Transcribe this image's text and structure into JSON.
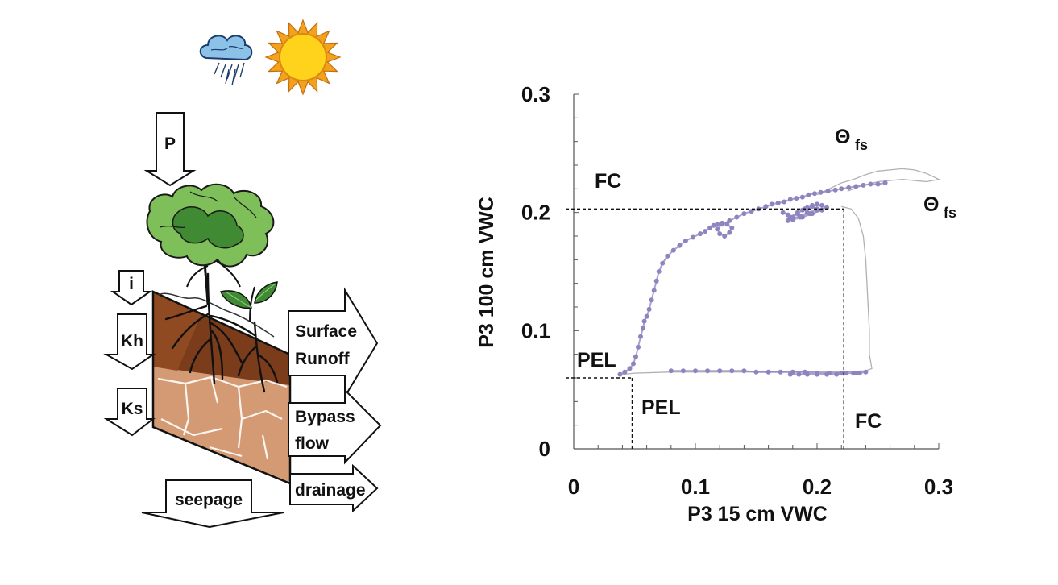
{
  "diagram": {
    "weather_icons": [
      "rain-cloud-icon",
      "sun-icon"
    ],
    "arrows": {
      "precipitation": "P",
      "infiltration": "i",
      "horizontal_conductivity": "Kh",
      "saturated_conductivity": "Ks",
      "surface_runoff_line1": "Surface",
      "surface_runoff_line2": "Runoff",
      "bypass_flow_line1": "Bypass",
      "bypass_flow_line2": "flow",
      "drainage": "drainage",
      "seepage": "seepage"
    }
  },
  "chart_data": {
    "type": "scatter",
    "title": "",
    "xlabel": "P3 15 cm VWC",
    "ylabel": "P3 100 cm VWC",
    "xlim": [
      0,
      0.3
    ],
    "ylim": [
      0,
      0.3
    ],
    "xticks": [
      "0",
      "0.1",
      "0.2",
      "0.3"
    ],
    "yticks": [
      "0",
      "0.1",
      "0.2",
      "0.3"
    ],
    "grid": false,
    "colors": {
      "points": "#8e84c0",
      "trace": "#b0b0b8",
      "reference_lines": "#111111"
    },
    "reference_lines": [
      {
        "label": "FC",
        "x": 0.222,
        "y": 0.203
      },
      {
        "label": "PEL",
        "x": 0.048,
        "y": 0.06
      }
    ],
    "annotations": {
      "fc_y_label": "FC",
      "fc_x_label": "FC",
      "pel_y_label": "PEL",
      "pel_x_label": "PEL",
      "theta_symbol": "Θ",
      "theta_subscript": "fs"
    },
    "series": [
      {
        "x": [
          0.038,
          0.042,
          0.046,
          0.049,
          0.051,
          0.053,
          0.055,
          0.057,
          0.058,
          0.06,
          0.062,
          0.064,
          0.066,
          0.068,
          0.07,
          0.073,
          0.077,
          0.082,
          0.087,
          0.092,
          0.098,
          0.104,
          0.108,
          0.112,
          0.115,
          0.118,
          0.122,
          0.126,
          0.13,
          0.128,
          0.124,
          0.12,
          0.118,
          0.122,
          0.128,
          0.134,
          0.14,
          0.146,
          0.152,
          0.158,
          0.163,
          0.168,
          0.173,
          0.178,
          0.183,
          0.188,
          0.193,
          0.198,
          0.203,
          0.209,
          0.215,
          0.22,
          0.226,
          0.232,
          0.238,
          0.244,
          0.25,
          0.256
        ],
        "y": [
          0.063,
          0.065,
          0.068,
          0.072,
          0.078,
          0.086,
          0.095,
          0.102,
          0.108,
          0.112,
          0.118,
          0.126,
          0.134,
          0.142,
          0.15,
          0.157,
          0.163,
          0.168,
          0.172,
          0.176,
          0.179,
          0.182,
          0.184,
          0.187,
          0.189,
          0.19,
          0.191,
          0.19,
          0.187,
          0.183,
          0.18,
          0.182,
          0.186,
          0.19,
          0.193,
          0.196,
          0.199,
          0.201,
          0.203,
          0.205,
          0.207,
          0.208,
          0.209,
          0.211,
          0.212,
          0.213,
          0.215,
          0.216,
          0.217,
          0.218,
          0.219,
          0.22,
          0.221,
          0.222,
          0.223,
          0.224,
          0.224,
          0.225
        ]
      },
      {
        "x": [
          0.172,
          0.176,
          0.18,
          0.184,
          0.188,
          0.192,
          0.196,
          0.2,
          0.204,
          0.208,
          0.2,
          0.192,
          0.186,
          0.18,
          0.176,
          0.178,
          0.184,
          0.19,
          0.196,
          0.2,
          0.194,
          0.186,
          0.18,
          0.188,
          0.196,
          0.204
        ],
        "y": [
          0.2,
          0.198,
          0.196,
          0.199,
          0.202,
          0.204,
          0.206,
          0.207,
          0.206,
          0.204,
          0.202,
          0.2,
          0.197,
          0.195,
          0.193,
          0.196,
          0.2,
          0.203,
          0.205,
          0.203,
          0.199,
          0.196,
          0.194,
          0.196,
          0.199,
          0.202
        ]
      },
      {
        "x": [
          0.08,
          0.09,
          0.1,
          0.11,
          0.12,
          0.13,
          0.14,
          0.15,
          0.16,
          0.17,
          0.18,
          0.19,
          0.2,
          0.21,
          0.22,
          0.23,
          0.235,
          0.24,
          0.178,
          0.185,
          0.192,
          0.2,
          0.208,
          0.216,
          0.224,
          0.232
        ],
        "y": [
          0.066,
          0.066,
          0.066,
          0.066,
          0.066,
          0.066,
          0.066,
          0.065,
          0.065,
          0.065,
          0.065,
          0.065,
          0.064,
          0.064,
          0.064,
          0.064,
          0.064,
          0.065,
          0.063,
          0.063,
          0.063,
          0.063,
          0.063,
          0.063,
          0.064,
          0.064
        ]
      }
    ],
    "trace_path": [
      {
        "x": [
          0.22,
          0.228,
          0.234,
          0.238,
          0.24,
          0.241,
          0.242,
          0.243,
          0.243,
          0.245,
          0.24,
          0.22,
          0.18,
          0.12,
          0.08,
          0.05,
          0.04
        ],
        "y": [
          0.205,
          0.203,
          0.195,
          0.18,
          0.16,
          0.14,
          0.12,
          0.1,
          0.08,
          0.068,
          0.066,
          0.065,
          0.065,
          0.065,
          0.065,
          0.064,
          0.063
        ]
      },
      {
        "x": [
          0.2,
          0.21,
          0.22,
          0.23,
          0.24,
          0.25,
          0.26,
          0.27,
          0.28,
          0.29,
          0.3,
          0.29,
          0.27,
          0.25,
          0.235,
          0.225
        ],
        "y": [
          0.215,
          0.22,
          0.225,
          0.228,
          0.232,
          0.235,
          0.236,
          0.237,
          0.236,
          0.233,
          0.228,
          0.226,
          0.228,
          0.226,
          0.222,
          0.218
        ]
      }
    ]
  }
}
